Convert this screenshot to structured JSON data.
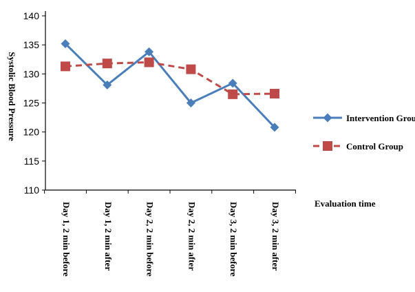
{
  "chart_data": {
    "type": "line",
    "title": "",
    "xlabel": "Evaluation time",
    "ylabel": "Systolic Blood Pressure",
    "ylim": [
      110,
      140
    ],
    "yticks": [
      110,
      115,
      120,
      125,
      130,
      135,
      140
    ],
    "grid": false,
    "legend_position": "right",
    "categories": [
      "Day 1, 2 min before",
      "Day 1, 2 min after",
      "Day 2, 2 min before",
      "Day 2, 2 min after",
      "Day 3, 2 min before",
      "Day 3, 2 min after"
    ],
    "series": [
      {
        "name": "Intervention Group",
        "values": [
          135.2,
          128.1,
          133.8,
          125.0,
          128.4,
          120.8
        ],
        "color": "#4a7ebb",
        "marker": "diamond",
        "line_style": "solid"
      },
      {
        "name": "Control Group",
        "values": [
          131.3,
          131.8,
          132.0,
          130.8,
          126.5,
          126.6
        ],
        "color": "#be4b48",
        "marker": "square",
        "line_style": "dashed"
      }
    ]
  }
}
